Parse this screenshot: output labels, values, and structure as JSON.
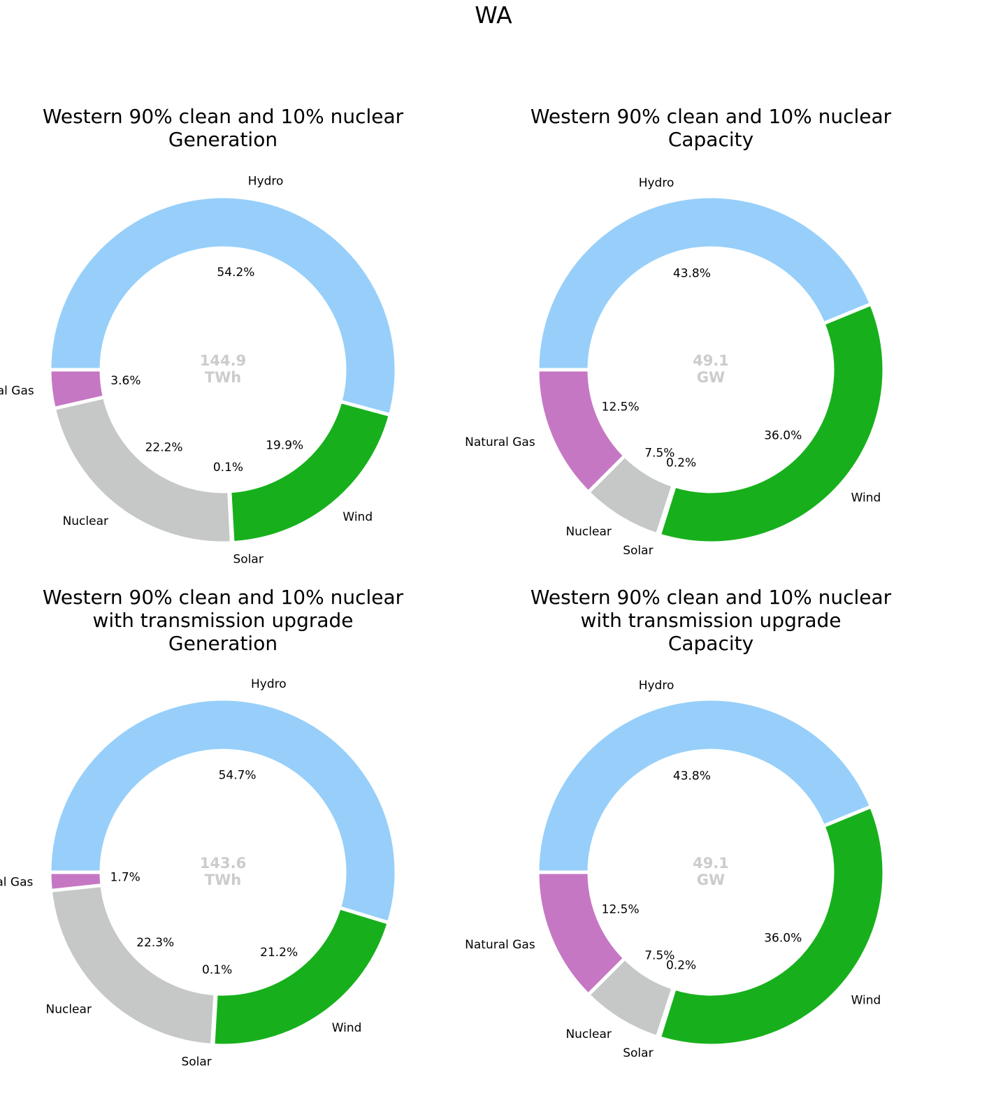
{
  "figure_title": "WA",
  "colors": {
    "Wind": "#17b01c",
    "Solar": "#f5c518",
    "Nuclear": "#c5c8c7",
    "Natural Gas": "#c677c3",
    "Hydro": "#97cffa",
    "center_text": "#cccccc"
  },
  "chart_data": [
    {
      "type": "pie",
      "title_lines": [
        "Western 90% clean and 10% nuclear",
        "Generation"
      ],
      "center_value": "144.9",
      "center_unit": "TWh",
      "slices": [
        {
          "label": "Natural Gas",
          "value": 3.6,
          "pct": "3.6%"
        },
        {
          "label": "Nuclear",
          "value": 22.2,
          "pct": "22.2%"
        },
        {
          "label": "Solar",
          "value": 0.1,
          "pct": "0.1%"
        },
        {
          "label": "Wind",
          "value": 19.9,
          "pct": "19.9%"
        },
        {
          "label": "Hydro",
          "value": 54.2,
          "pct": "54.2%"
        }
      ]
    },
    {
      "type": "pie",
      "title_lines": [
        "Western 90% clean and 10% nuclear",
        "Capacity"
      ],
      "center_value": "49.1",
      "center_unit": "GW",
      "slices": [
        {
          "label": "Natural Gas",
          "value": 12.5,
          "pct": "12.5%"
        },
        {
          "label": "Nuclear",
          "value": 7.5,
          "pct": "7.5%"
        },
        {
          "label": "Solar",
          "value": 0.2,
          "pct": "0.2%"
        },
        {
          "label": "Wind",
          "value": 36.0,
          "pct": "36.0%"
        },
        {
          "label": "Hydro",
          "value": 43.8,
          "pct": "43.8%"
        }
      ]
    },
    {
      "type": "pie",
      "title_lines": [
        "Western 90% clean and 10% nuclear",
        "with transmission upgrade",
        "Generation"
      ],
      "center_value": "143.6",
      "center_unit": "TWh",
      "slices": [
        {
          "label": "Natural Gas",
          "value": 1.7,
          "pct": "1.7%"
        },
        {
          "label": "Nuclear",
          "value": 22.3,
          "pct": "22.3%"
        },
        {
          "label": "Solar",
          "value": 0.1,
          "pct": "0.1%"
        },
        {
          "label": "Wind",
          "value": 21.2,
          "pct": "21.2%"
        },
        {
          "label": "Hydro",
          "value": 54.7,
          "pct": "54.7%"
        }
      ]
    },
    {
      "type": "pie",
      "title_lines": [
        "Western 90% clean and 10% nuclear",
        "with transmission upgrade",
        "Capacity"
      ],
      "center_value": "49.1",
      "center_unit": "GW",
      "slices": [
        {
          "label": "Natural Gas",
          "value": 12.5,
          "pct": "12.5%"
        },
        {
          "label": "Nuclear",
          "value": 7.5,
          "pct": "7.5%"
        },
        {
          "label": "Solar",
          "value": 0.2,
          "pct": "0.2%"
        },
        {
          "label": "Wind",
          "value": 36.0,
          "pct": "36.0%"
        },
        {
          "label": "Hydro",
          "value": 43.8,
          "pct": "43.8%"
        }
      ]
    }
  ]
}
